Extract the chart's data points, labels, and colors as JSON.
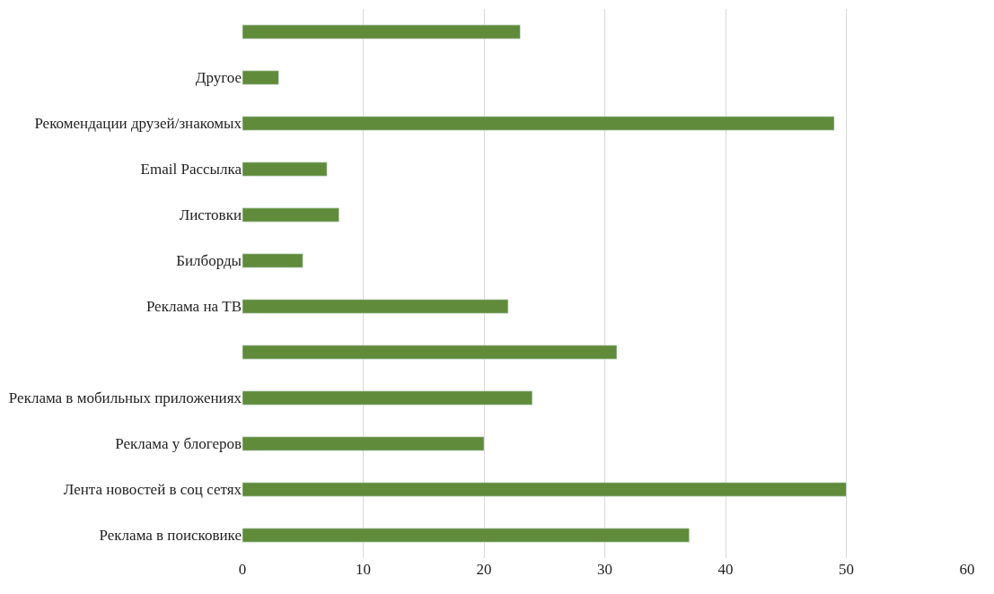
{
  "chart_data": {
    "type": "bar",
    "orientation": "horizontal",
    "categories": [
      null,
      "Другое",
      "Рекомендации друзей/знакомых",
      "Email Рассылка",
      "Листовки",
      "Билборды",
      "Реклама на ТВ",
      null,
      "Реклама в мобильных приложениях",
      "Реклама у блогеров",
      "Лента новостей в соц сетях",
      "Реклама в поисковике"
    ],
    "values": [
      23,
      3,
      49,
      7,
      8,
      5,
      22,
      31,
      24,
      20,
      50,
      37
    ],
    "color": "#5f8b3b",
    "xlim": [
      0,
      60
    ],
    "xticks": [
      0,
      10,
      20,
      30,
      40,
      50,
      60
    ],
    "grid": "x"
  }
}
